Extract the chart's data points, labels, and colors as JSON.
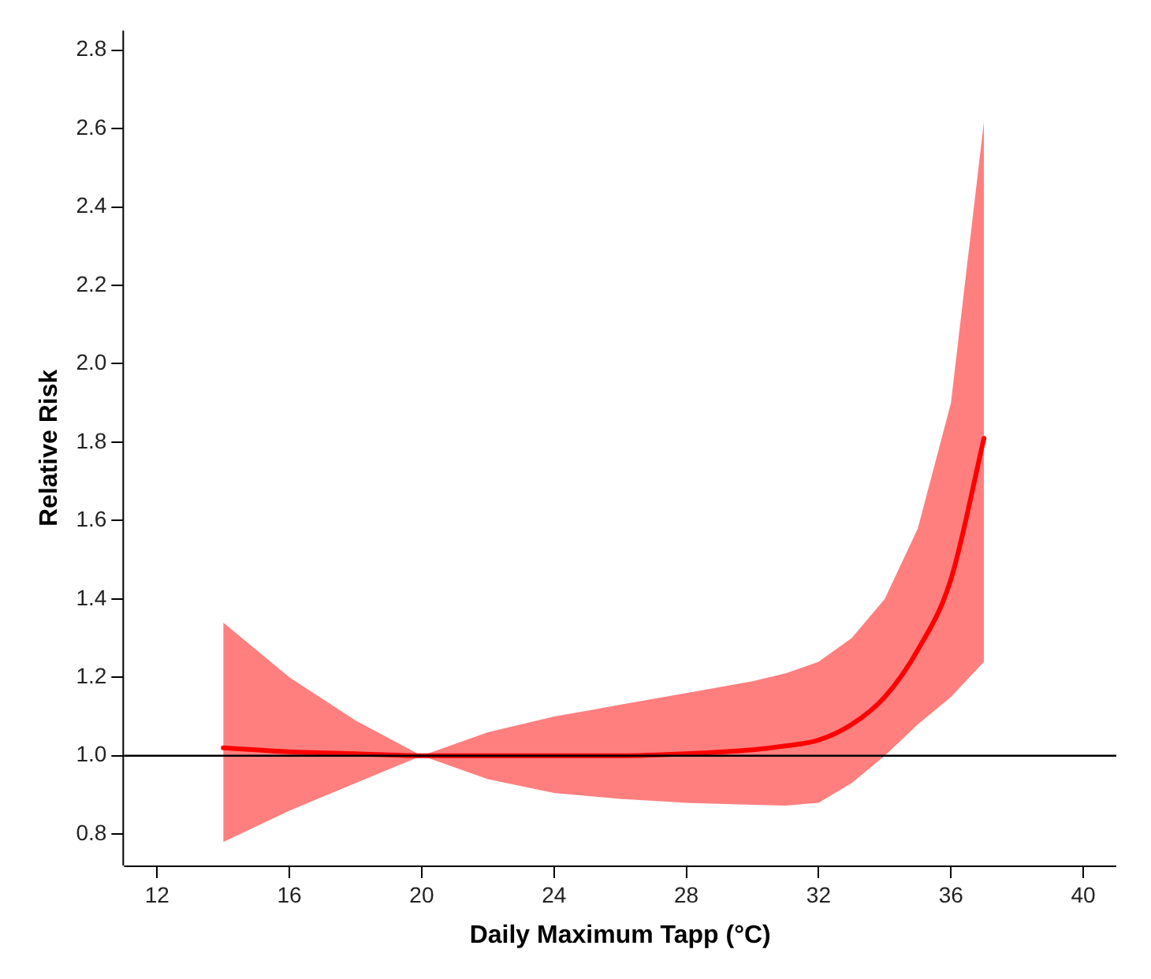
{
  "chart_data": {
    "type": "line",
    "xlabel": "Daily Maximum Tapp (°C)",
    "ylabel": "Relative Risk",
    "x": [
      14,
      16,
      18,
      20,
      22,
      24,
      26,
      28,
      30,
      31,
      32,
      33,
      34,
      35,
      36,
      37
    ],
    "series": [
      {
        "type": "line",
        "color": "#ff0000",
        "values": [
          1.02,
          1.01,
          1.005,
          1.0,
          1.0,
          1.0,
          1.0,
          1.005,
          1.015,
          1.025,
          1.04,
          1.08,
          1.15,
          1.27,
          1.45,
          1.81
        ],
        "lower": [
          0.78,
          0.86,
          0.93,
          1.0,
          0.94,
          0.905,
          0.89,
          0.88,
          0.875,
          0.873,
          0.88,
          0.93,
          1.0,
          1.08,
          1.15,
          1.24
        ],
        "upper": [
          1.34,
          1.2,
          1.09,
          1.0,
          1.06,
          1.1,
          1.13,
          1.16,
          1.19,
          1.21,
          1.24,
          1.3,
          1.4,
          1.58,
          1.9,
          2.62
        ]
      }
    ],
    "xlim": [
      11,
      41
    ],
    "xticks": [
      12,
      16,
      20,
      24,
      28,
      32,
      36,
      40
    ],
    "ylim": [
      0.72,
      2.85
    ],
    "yticks": [
      0.8,
      {
        "value": 1.0,
        "label": "1.0"
      },
      1.2,
      1.4,
      1.6,
      1.8,
      {
        "value": 2.0,
        "label": "2.0"
      },
      2.2,
      2.4,
      2.6,
      2.8
    ],
    "ref_lines": [
      {
        "axis": "y",
        "value": 1.0,
        "color": "#000000"
      }
    ],
    "grid": false,
    "legend": false,
    "marker": "none",
    "line_style": "solid"
  }
}
